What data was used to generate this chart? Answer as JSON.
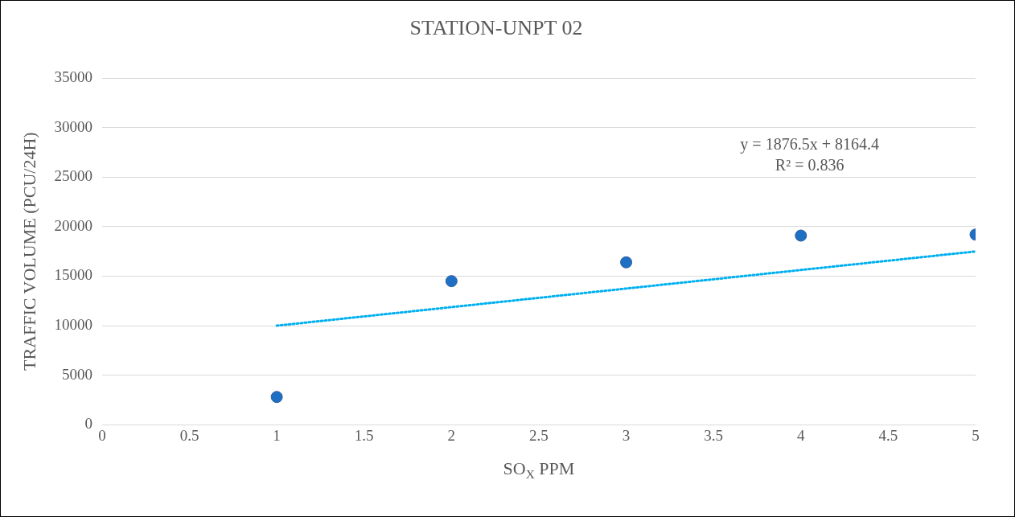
{
  "chart_data": {
    "type": "scatter",
    "title": "STATION-UNPT 02",
    "xlabel": "SO$_{X}$ PPM",
    "ylabel": "TRAFFIC VOLUME (PCU/24H)",
    "x": [
      1,
      2,
      3,
      4,
      5
    ],
    "series": [
      {
        "color": "#1f6fc5",
        "values": [
          2800,
          14500,
          16400,
          19100,
          19200
        ],
        "marker": "circle"
      },
      {
        "type": "line",
        "color": "#00b0f0",
        "x": [
          1,
          5
        ],
        "values": [
          10000,
          17500
        ],
        "line_style": "dotted",
        "marker": "none"
      }
    ],
    "annotations": [
      "y = 1876.5x + 8164.4",
      "R² = 0.836"
    ],
    "xlim": [
      0,
      5
    ],
    "xticks": [
      0,
      0.5,
      1,
      1.5,
      2,
      2.5,
      3,
      3.5,
      4,
      4.5,
      5
    ],
    "ylim": [
      0,
      35000
    ],
    "yticks": [
      0,
      5000,
      10000,
      15000,
      20000,
      25000,
      30000,
      35000
    ],
    "grid": "y",
    "legend": false
  }
}
